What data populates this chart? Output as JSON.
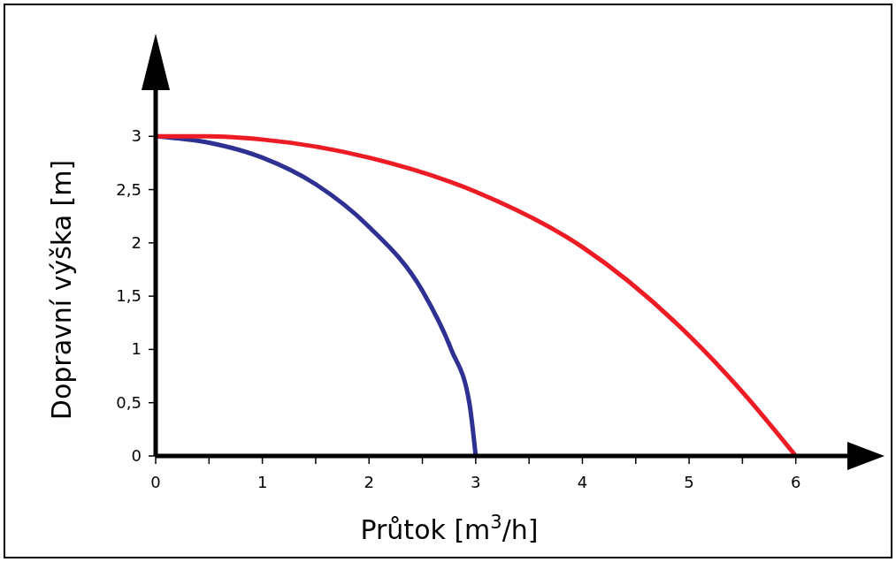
{
  "chart_data": {
    "type": "line",
    "xlabel": "Průtok [m$^{3}$/h]",
    "ylabel": "Dopravní výška [m]",
    "xlim": [
      0,
      6.5
    ],
    "ylim": [
      0,
      3.45
    ],
    "xticks": [
      0,
      {
        "value": 0.5,
        "label": null
      },
      1,
      {
        "value": 1.5,
        "label": null
      },
      2,
      {
        "value": 2.5,
        "label": null
      },
      3,
      {
        "value": 3.5,
        "label": null
      },
      4,
      {
        "value": 4.5,
        "label": null
      },
      5,
      {
        "value": 5.5,
        "label": null
      },
      6
    ],
    "yticks": [
      0,
      {
        "value": 0.5,
        "label": "0,5"
      },
      1,
      {
        "value": 1.5,
        "label": "1,5"
      },
      2,
      {
        "value": 2.5,
        "label": "2,5"
      },
      3
    ],
    "grid": false,
    "marker": "none",
    "line_style": "solid",
    "series": [
      {
        "color": "#2e3192",
        "x": [
          0,
          0.5,
          1,
          1.5,
          2,
          2.5,
          2.77,
          2.94,
          3
        ],
        "values": [
          3,
          2.94,
          2.8,
          2.55,
          2.15,
          1.55,
          1,
          0.5,
          0
        ]
      },
      {
        "color": "#ed1c24",
        "x": [
          0,
          0.5,
          1,
          2,
          3,
          4,
          5,
          5.5,
          6
        ],
        "values": [
          3,
          3,
          2.97,
          2.8,
          2.48,
          1.96,
          1.13,
          0.6,
          0
        ]
      }
    ]
  }
}
